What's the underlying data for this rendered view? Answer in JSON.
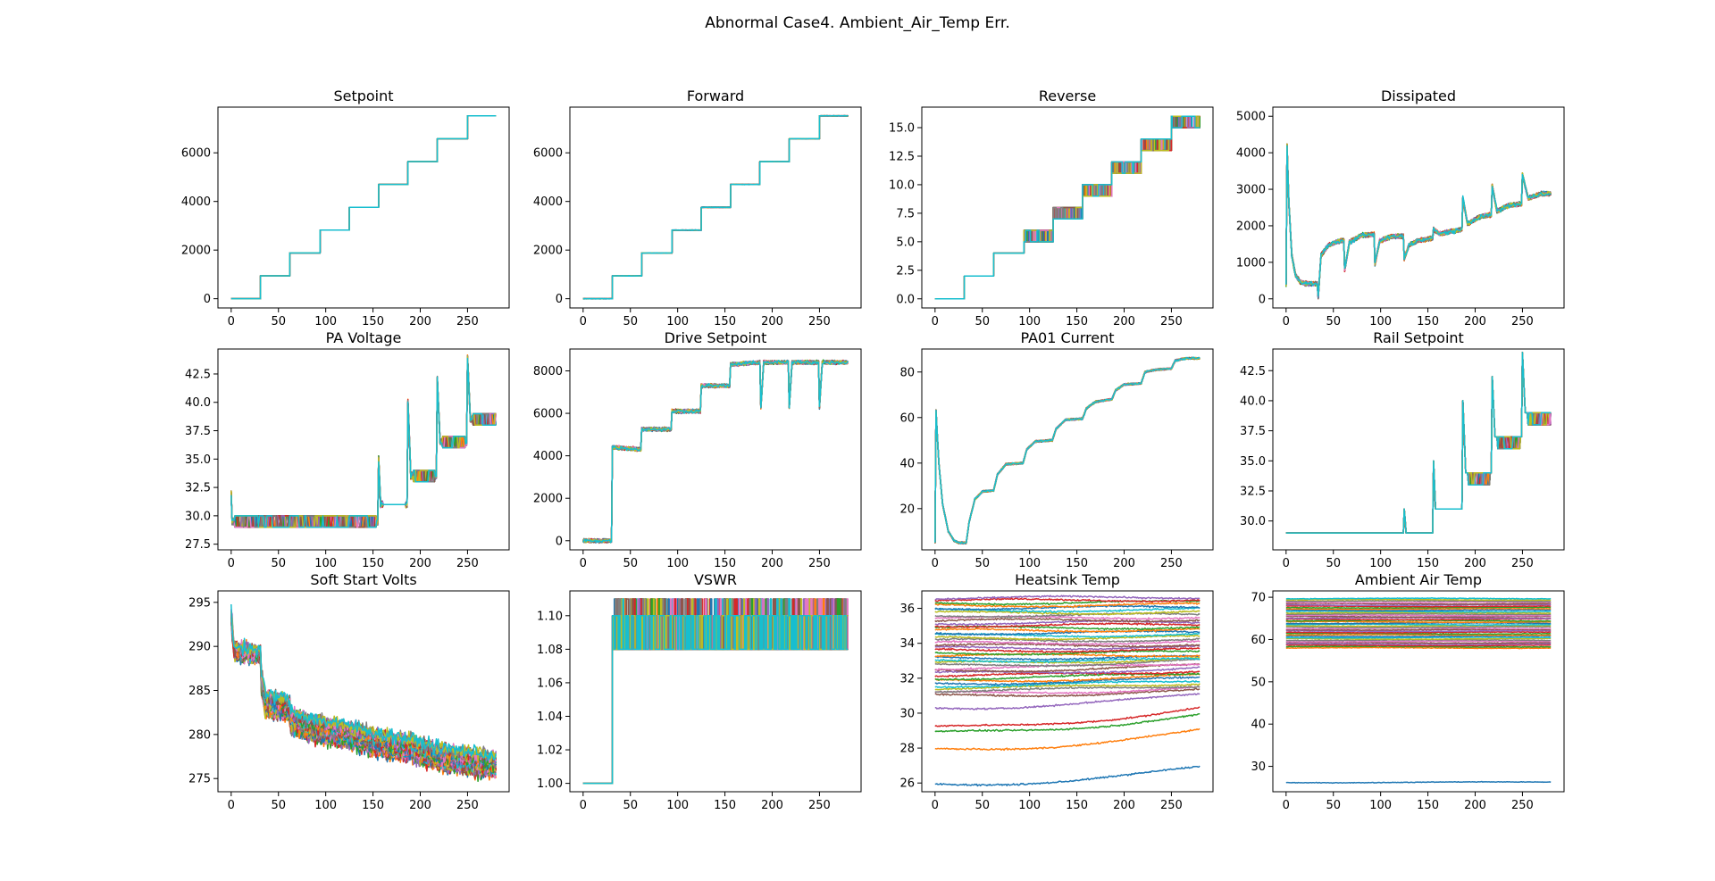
{
  "suptitle": "Abnormal Case4. Ambient_Air_Temp Err.",
  "chart_data": [
    {
      "type": "line",
      "title": "Setpoint",
      "xlabel": "",
      "ylabel": "",
      "xlim": [
        -14,
        294
      ],
      "ylim": [
        -380,
        7880
      ],
      "xticks": [
        0,
        50,
        100,
        150,
        200,
        250
      ],
      "yticks": [
        0,
        2000,
        4000,
        6000
      ],
      "ytick_labels": [
        "0",
        "2000",
        "4000",
        "6000"
      ],
      "pattern": "steps",
      "series_count": 40,
      "steps": [
        [
          0,
          0
        ],
        [
          31,
          940
        ],
        [
          62,
          1880
        ],
        [
          94,
          2820
        ],
        [
          125,
          3760
        ],
        [
          156,
          4700
        ],
        [
          187,
          5640
        ],
        [
          218,
          6580
        ],
        [
          250,
          7520
        ],
        [
          280,
          7520
        ]
      ],
      "noise": 0
    },
    {
      "type": "line",
      "title": "Forward",
      "xlabel": "",
      "ylabel": "",
      "xlim": [
        -14,
        294
      ],
      "ylim": [
        -380,
        7880
      ],
      "xticks": [
        0,
        50,
        100,
        150,
        200,
        250
      ],
      "yticks": [
        0,
        2000,
        4000,
        6000
      ],
      "ytick_labels": [
        "0",
        "2000",
        "4000",
        "6000"
      ],
      "pattern": "steps",
      "series_count": 40,
      "steps": [
        [
          0,
          0
        ],
        [
          31,
          940
        ],
        [
          62,
          1880
        ],
        [
          94,
          2820
        ],
        [
          125,
          3760
        ],
        [
          156,
          4700
        ],
        [
          187,
          5640
        ],
        [
          218,
          6580
        ],
        [
          250,
          7520
        ],
        [
          280,
          7520
        ]
      ],
      "noise": 8
    },
    {
      "type": "line",
      "title": "Reverse",
      "xlabel": "",
      "ylabel": "",
      "xlim": [
        -14,
        294
      ],
      "ylim": [
        -0.8,
        16.8
      ],
      "xticks": [
        0,
        50,
        100,
        150,
        200,
        250
      ],
      "yticks": [
        0,
        2.5,
        5,
        7.5,
        10,
        12.5,
        15
      ],
      "ytick_labels": [
        "0.0",
        "2.5",
        "5.0",
        "7.5",
        "10.0",
        "12.5",
        "15.0"
      ],
      "pattern": "step_bands",
      "series_count": 40,
      "steps": [
        [
          0,
          0,
          0
        ],
        [
          31,
          2,
          2
        ],
        [
          62,
          4,
          4
        ],
        [
          94,
          5,
          6
        ],
        [
          125,
          7,
          8
        ],
        [
          156,
          9,
          10
        ],
        [
          187,
          11,
          12
        ],
        [
          218,
          13,
          14
        ],
        [
          250,
          15,
          16
        ],
        [
          280,
          15,
          16
        ]
      ]
    },
    {
      "type": "line",
      "title": "Dissipated",
      "xlabel": "",
      "ylabel": "",
      "xlim": [
        -14,
        294
      ],
      "ylim": [
        -250,
        5250
      ],
      "xticks": [
        0,
        50,
        100,
        150,
        200,
        250
      ],
      "yticks": [
        0,
        1000,
        2000,
        3000,
        4000,
        5000
      ],
      "ytick_labels": [
        "0",
        "1000",
        "2000",
        "3000",
        "4000",
        "5000"
      ],
      "pattern": "knots",
      "series_count": 40,
      "noise": 60,
      "knots": [
        [
          0,
          400
        ],
        [
          1,
          4200
        ],
        [
          3,
          2600
        ],
        [
          6,
          1200
        ],
        [
          10,
          650
        ],
        [
          15,
          460
        ],
        [
          20,
          420
        ],
        [
          33,
          410
        ],
        [
          34,
          60
        ],
        [
          37,
          1200
        ],
        [
          45,
          1470
        ],
        [
          55,
          1570
        ],
        [
          61,
          1600
        ],
        [
          62,
          800
        ],
        [
          67,
          1550
        ],
        [
          80,
          1740
        ],
        [
          93,
          1770
        ],
        [
          94,
          950
        ],
        [
          99,
          1580
        ],
        [
          110,
          1700
        ],
        [
          124,
          1720
        ],
        [
          125,
          1100
        ],
        [
          130,
          1470
        ],
        [
          140,
          1600
        ],
        [
          155,
          1660
        ],
        [
          156,
          1900
        ],
        [
          162,
          1780
        ],
        [
          178,
          1860
        ],
        [
          186,
          1900
        ],
        [
          187,
          2750
        ],
        [
          192,
          2050
        ],
        [
          205,
          2250
        ],
        [
          217,
          2300
        ],
        [
          218,
          3100
        ],
        [
          223,
          2400
        ],
        [
          235,
          2550
        ],
        [
          249,
          2600
        ],
        [
          250,
          3400
        ],
        [
          256,
          2750
        ],
        [
          270,
          2880
        ],
        [
          280,
          2880
        ]
      ]
    },
    {
      "type": "line",
      "title": "PA Voltage",
      "xlabel": "",
      "ylabel": "",
      "xlim": [
        -14,
        294
      ],
      "ylim": [
        27,
        44.7
      ],
      "xticks": [
        0,
        50,
        100,
        150,
        200,
        250
      ],
      "yticks": [
        27.5,
        30,
        32.5,
        35,
        37.5,
        40,
        42.5
      ],
      "ytick_labels": [
        "27.5",
        "30.0",
        "32.5",
        "35.0",
        "37.5",
        "40.0",
        "42.5"
      ],
      "pattern": "knots_bands",
      "series_count": 40,
      "noise": 0.3,
      "knots": [
        [
          0,
          32
        ],
        [
          1,
          29.5
        ],
        [
          124,
          29.5
        ],
        [
          125,
          31
        ],
        [
          127,
          29.5
        ],
        [
          155,
          29.5
        ],
        [
          156,
          35
        ],
        [
          158,
          31
        ],
        [
          186,
          31
        ],
        [
          187,
          40
        ],
        [
          190,
          33.5
        ],
        [
          217,
          33.5
        ],
        [
          218,
          42
        ],
        [
          221,
          36.5
        ],
        [
          249,
          36.5
        ],
        [
          250,
          44
        ],
        [
          253,
          38.5
        ],
        [
          280,
          38.5
        ]
      ],
      "bands": [
        [
          0,
          155,
          29,
          30
        ],
        [
          156,
          186,
          31,
          31
        ],
        [
          187,
          217,
          33,
          34
        ],
        [
          218,
          249,
          36,
          37
        ],
        [
          250,
          280,
          38,
          39
        ]
      ]
    },
    {
      "type": "line",
      "title": "Drive Setpoint",
      "xlabel": "",
      "ylabel": "",
      "xlim": [
        -14,
        294
      ],
      "ylim": [
        -430,
        9030
      ],
      "xticks": [
        0,
        50,
        100,
        150,
        200,
        250
      ],
      "yticks": [
        0,
        2000,
        4000,
        6000,
        8000
      ],
      "ytick_labels": [
        "0",
        "2000",
        "4000",
        "6000",
        "8000"
      ],
      "pattern": "knots",
      "series_count": 40,
      "noise": 90,
      "knots": [
        [
          0,
          0
        ],
        [
          30,
          0
        ],
        [
          31,
          4400
        ],
        [
          61,
          4300
        ],
        [
          62,
          5250
        ],
        [
          93,
          5250
        ],
        [
          94,
          6100
        ],
        [
          124,
          6100
        ],
        [
          125,
          7300
        ],
        [
          155,
          7300
        ],
        [
          156,
          8300
        ],
        [
          187,
          8400
        ],
        [
          188,
          6300
        ],
        [
          191,
          8400
        ],
        [
          217,
          8400
        ],
        [
          218,
          6300
        ],
        [
          221,
          8400
        ],
        [
          249,
          8400
        ],
        [
          250,
          6300
        ],
        [
          253,
          8400
        ],
        [
          280,
          8400
        ]
      ]
    },
    {
      "type": "line",
      "title": "PA01 Current",
      "xlabel": "",
      "ylabel": "",
      "xlim": [
        -14,
        294
      ],
      "ylim": [
        1.9,
        90.1
      ],
      "xticks": [
        0,
        50,
        100,
        150,
        200,
        250
      ],
      "yticks": [
        20,
        40,
        60,
        80
      ],
      "ytick_labels": [
        "20",
        "40",
        "60",
        "80"
      ],
      "pattern": "knots",
      "series_count": 40,
      "noise": 0.4,
      "knots": [
        [
          0,
          5
        ],
        [
          1,
          63
        ],
        [
          4,
          40
        ],
        [
          8,
          22
        ],
        [
          14,
          10
        ],
        [
          20,
          6
        ],
        [
          25,
          5
        ],
        [
          33,
          5
        ],
        [
          36,
          14
        ],
        [
          42,
          24
        ],
        [
          50,
          27.5
        ],
        [
          62,
          28
        ],
        [
          66,
          35
        ],
        [
          75,
          39.5
        ],
        [
          93,
          40
        ],
        [
          97,
          46
        ],
        [
          106,
          49.5
        ],
        [
          124,
          50
        ],
        [
          128,
          55
        ],
        [
          138,
          59
        ],
        [
          156,
          59.5
        ],
        [
          160,
          64
        ],
        [
          170,
          67
        ],
        [
          187,
          68
        ],
        [
          191,
          72
        ],
        [
          200,
          74.5
        ],
        [
          218,
          75
        ],
        [
          222,
          80
        ],
        [
          233,
          81
        ],
        [
          250,
          81.5
        ],
        [
          254,
          85
        ],
        [
          265,
          86
        ],
        [
          280,
          86
        ]
      ]
    },
    {
      "type": "line",
      "title": "Rail Setpoint",
      "xlabel": "",
      "ylabel": "",
      "xlim": [
        -14,
        294
      ],
      "ylim": [
        27.6,
        44.3
      ],
      "xticks": [
        0,
        50,
        100,
        150,
        200,
        250
      ],
      "yticks": [
        30,
        32.5,
        35,
        37.5,
        40,
        42.5
      ],
      "ytick_labels": [
        "30.0",
        "32.5",
        "35.0",
        "37.5",
        "40.0",
        "42.5"
      ],
      "pattern": "knots_bands",
      "series_count": 40,
      "noise": 0,
      "knots": [
        [
          0,
          29
        ],
        [
          124,
          29
        ],
        [
          125,
          31
        ],
        [
          127,
          29
        ],
        [
          155,
          29
        ],
        [
          156,
          35
        ],
        [
          158,
          31
        ],
        [
          186,
          31
        ],
        [
          187,
          40
        ],
        [
          190,
          34
        ],
        [
          217,
          34
        ],
        [
          218,
          42
        ],
        [
          221,
          37
        ],
        [
          249,
          37
        ],
        [
          250,
          44
        ],
        [
          253,
          39
        ],
        [
          280,
          39
        ]
      ],
      "bands": [
        [
          187,
          217,
          33,
          34
        ],
        [
          218,
          249,
          36,
          37
        ],
        [
          250,
          280,
          38,
          39
        ]
      ]
    },
    {
      "type": "line",
      "title": "Soft Start Volts",
      "xlabel": "",
      "ylabel": "",
      "xlim": [
        -14,
        294
      ],
      "ylim": [
        273.5,
        296.3
      ],
      "xticks": [
        0,
        50,
        100,
        150,
        200,
        250
      ],
      "yticks": [
        275,
        280,
        285,
        290,
        295
      ],
      "ytick_labels": [
        "275",
        "280",
        "285",
        "290",
        "295"
      ],
      "pattern": "knots_spread",
      "series_count": 40,
      "noise": 0.9,
      "spread": 2.2,
      "knots": [
        [
          0,
          293.5
        ],
        [
          3,
          289.5
        ],
        [
          31,
          289
        ],
        [
          32,
          286
        ],
        [
          36,
          283.5
        ],
        [
          62,
          283
        ],
        [
          63,
          281.5
        ],
        [
          95,
          280.5
        ],
        [
          125,
          280
        ],
        [
          156,
          279
        ],
        [
          187,
          278.5
        ],
        [
          218,
          277.5
        ],
        [
          250,
          277
        ],
        [
          280,
          276.5
        ]
      ]
    },
    {
      "type": "line",
      "title": "VSWR",
      "xlabel": "",
      "ylabel": "",
      "xlim": [
        -14,
        294
      ],
      "ylim": [
        0.995,
        1.1148
      ],
      "xticks": [
        0,
        50,
        100,
        150,
        200,
        250
      ],
      "yticks": [
        1.0,
        1.02,
        1.04,
        1.06,
        1.08,
        1.1
      ],
      "ytick_labels": [
        "1.00",
        "1.02",
        "1.04",
        "1.06",
        "1.08",
        "1.10"
      ],
      "pattern": "vswr",
      "series_count": 40,
      "start": 31,
      "low": 1.08,
      "high": 1.1,
      "spike": 1.11,
      "base": 1.0
    },
    {
      "type": "line",
      "title": "Heatsink Temp",
      "xlabel": "",
      "ylabel": "",
      "xlim": [
        -14,
        294
      ],
      "ylim": [
        25.5,
        37.0
      ],
      "xticks": [
        0,
        50,
        100,
        150,
        200,
        250
      ],
      "yticks": [
        26,
        28,
        30,
        32,
        34,
        36
      ],
      "ytick_labels": [
        "26",
        "28",
        "30",
        "32",
        "34",
        "36"
      ],
      "pattern": "bundle",
      "series_count": 45,
      "noise": 0.05,
      "outliers": [
        [
          25.9,
          26.9
        ],
        [
          27.9,
          29.0
        ],
        [
          28.9,
          29.9
        ],
        [
          29.2,
          30.3
        ],
        [
          30.3,
          31.1
        ]
      ],
      "bundle_range": [
        31.0,
        36.6
      ],
      "drift": 0.25
    },
    {
      "type": "line",
      "title": "Ambient Air Temp",
      "xlabel": "",
      "ylabel": "",
      "xlim": [
        -14,
        294
      ],
      "ylim": [
        24.0,
        71.5
      ],
      "xticks": [
        0,
        50,
        100,
        150,
        200,
        250
      ],
      "yticks": [
        30,
        40,
        50,
        60,
        70
      ],
      "ytick_labels": [
        "30",
        "40",
        "50",
        "60",
        "70"
      ],
      "pattern": "bundle",
      "series_count": 40,
      "noise": 0.08,
      "outliers": [
        [
          26.2,
          26.3
        ]
      ],
      "bundle_range": [
        58.0,
        69.7
      ],
      "drift": 0.0
    }
  ]
}
